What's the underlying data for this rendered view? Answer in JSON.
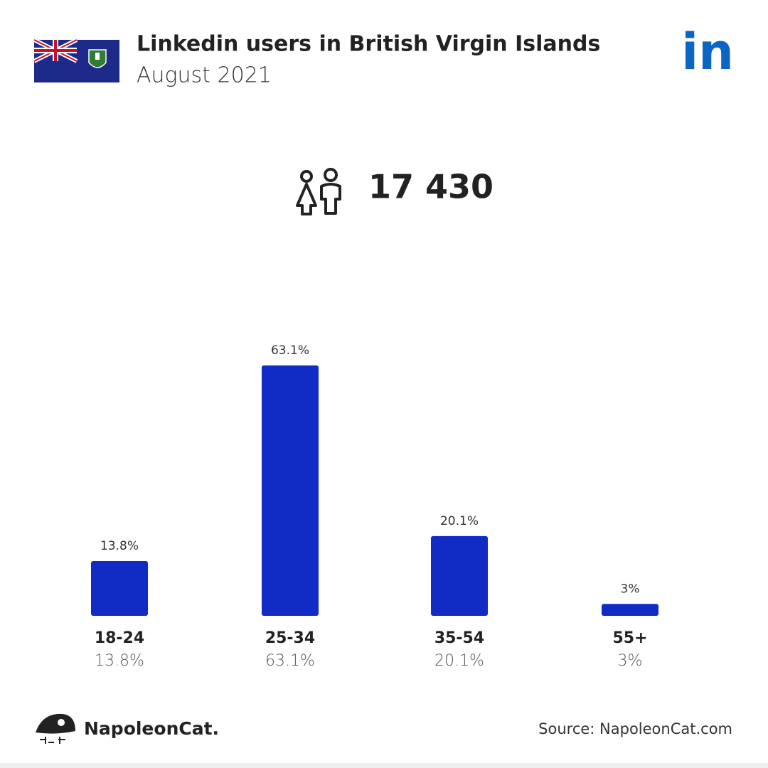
{
  "chart_data": {
    "type": "bar",
    "title": "Linkedin users in British Virgin Islands",
    "subtitle": "August 2021",
    "total_users": "17 430",
    "linkedin_logo": "in",
    "brand": "NapoleonCat.",
    "source": "Source: NapoleonCat.com",
    "categories": [
      "18-24",
      "25-34",
      "35-54",
      "55+"
    ],
    "values": [
      13.8,
      63.1,
      20.1,
      3
    ],
    "value_labels": [
      "13.8%",
      "63.1%",
      "20.1%",
      "3%"
    ],
    "color": "#102cc4"
  }
}
